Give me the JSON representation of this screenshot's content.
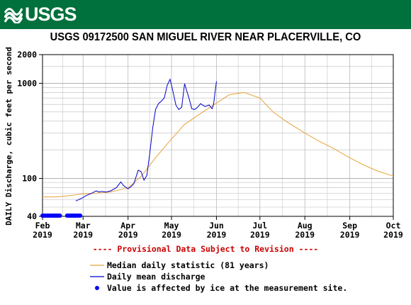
{
  "header": {
    "logo_text": "USGS",
    "brand_color": "#00703c"
  },
  "chart_data": {
    "type": "line",
    "title": "USGS 09172500 SAN MIGUEL RIVER NEAR PLACERVILLE, CO",
    "ylabel": "DAILY Discharge, cubic feet per second",
    "y_scale": "log",
    "ylim": [
      40,
      2000
    ],
    "y_ticks": [
      40,
      100,
      1000,
      2000
    ],
    "y_tick_labels": [
      "40",
      "100",
      "1000",
      "2000"
    ],
    "xlim": [
      "2019-02-01",
      "2019-10-01"
    ],
    "x_ticks": [
      {
        "date": "2019-02-01",
        "month": "Feb",
        "year": "2019"
      },
      {
        "date": "2019-03-01",
        "month": "Mar",
        "year": "2019"
      },
      {
        "date": "2019-04-01",
        "month": "Apr",
        "year": "2019"
      },
      {
        "date": "2019-05-01",
        "month": "May",
        "year": "2019"
      },
      {
        "date": "2019-06-01",
        "month": "Jun",
        "year": "2019"
      },
      {
        "date": "2019-07-01",
        "month": "Jul",
        "year": "2019"
      },
      {
        "date": "2019-08-01",
        "month": "Aug",
        "year": "2019"
      },
      {
        "date": "2019-09-01",
        "month": "Sep",
        "year": "2019"
      },
      {
        "date": "2019-10-01",
        "month": "Oct",
        "year": "2019"
      }
    ],
    "grid": true,
    "provisional_note": "---- Provisional Data Subject to Revision ----",
    "colors": {
      "median": "#e8a33a",
      "daily": "#0000cc",
      "ice": "#0000ff",
      "provisional": "#cc0000",
      "grid": "#bbbbbb"
    },
    "series": [
      {
        "name": "Median daily statistic (81 years)",
        "x": [
          "2019-02-01",
          "2019-02-10",
          "2019-02-20",
          "2019-03-01",
          "2019-03-10",
          "2019-03-20",
          "2019-04-01",
          "2019-04-10",
          "2019-04-20",
          "2019-05-01",
          "2019-05-10",
          "2019-05-20",
          "2019-06-01",
          "2019-06-10",
          "2019-06-20",
          "2019-07-01",
          "2019-07-10",
          "2019-07-20",
          "2019-08-01",
          "2019-08-10",
          "2019-08-20",
          "2019-09-01",
          "2019-09-10",
          "2019-09-20",
          "2019-10-01"
        ],
        "values": [
          64,
          64,
          66,
          69,
          70,
          72,
          80,
          105,
          165,
          260,
          370,
          470,
          620,
          760,
          800,
          700,
          500,
          390,
          300,
          250,
          210,
          165,
          140,
          120,
          106
        ]
      },
      {
        "name": "Daily mean discharge",
        "x": [
          "2019-02-24",
          "2019-02-26",
          "2019-02-28",
          "2019-03-03",
          "2019-03-05",
          "2019-03-07",
          "2019-03-10",
          "2019-03-12",
          "2019-03-14",
          "2019-03-17",
          "2019-03-20",
          "2019-03-24",
          "2019-03-27",
          "2019-03-29",
          "2019-04-01",
          "2019-04-03",
          "2019-04-05",
          "2019-04-08",
          "2019-04-10",
          "2019-04-12",
          "2019-04-14",
          "2019-04-16",
          "2019-04-18",
          "2019-04-20",
          "2019-04-22",
          "2019-04-24",
          "2019-04-26",
          "2019-04-28",
          "2019-04-30",
          "2019-05-02",
          "2019-05-04",
          "2019-05-06",
          "2019-05-08",
          "2019-05-10",
          "2019-05-13",
          "2019-05-15",
          "2019-05-17",
          "2019-05-19",
          "2019-05-21",
          "2019-05-24",
          "2019-05-27",
          "2019-05-29",
          "2019-05-30",
          "2019-05-31",
          "2019-06-01"
        ],
        "values": [
          58,
          60,
          62,
          66,
          68,
          70,
          74,
          72,
          73,
          72,
          74,
          80,
          92,
          84,
          78,
          82,
          88,
          122,
          118,
          96,
          108,
          185,
          340,
          530,
          610,
          650,
          700,
          950,
          1100,
          820,
          590,
          530,
          560,
          990,
          700,
          540,
          530,
          560,
          610,
          570,
          590,
          540,
          600,
          800,
          1050
        ]
      },
      {
        "name": "Value is affected by ice at the measurement site.",
        "style": "dots",
        "x": [
          "2019-02-01",
          "2019-02-02",
          "2019-02-03",
          "2019-02-04",
          "2019-02-05",
          "2019-02-06",
          "2019-02-07",
          "2019-02-08",
          "2019-02-09",
          "2019-02-10",
          "2019-02-11",
          "2019-02-12",
          "2019-02-13",
          "2019-02-18",
          "2019-02-19",
          "2019-02-20",
          "2019-02-21",
          "2019-02-22",
          "2019-02-23",
          "2019-02-24",
          "2019-02-25",
          "2019-02-26",
          "2019-02-27"
        ],
        "values": [
          40,
          40,
          40,
          40,
          40,
          40,
          40,
          40,
          40,
          40,
          40,
          40,
          40,
          40,
          40,
          40,
          40,
          40,
          40,
          40,
          40,
          40,
          40
        ]
      }
    ]
  }
}
